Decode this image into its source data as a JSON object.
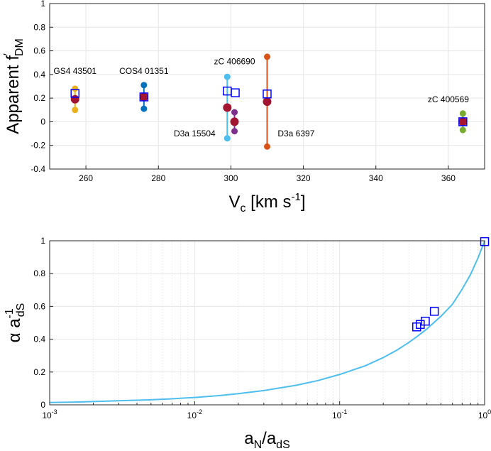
{
  "chart_data": [
    {
      "type": "scatter",
      "title": "",
      "xlabel": {
        "base": "V",
        "sub": "c",
        "rest": " [km s",
        "sup": "-1",
        "close": "]"
      },
      "ylabel": {
        "base": "Apparent f",
        "sup": "′",
        "sub": "DM"
      },
      "xlim": [
        250,
        370
      ],
      "ylim": [
        -0.4,
        1
      ],
      "xticks": [
        260,
        280,
        300,
        320,
        340,
        360
      ],
      "yticks": [
        -0.4,
        -0.2,
        0,
        0.2,
        0.4,
        0.6,
        0.8,
        1
      ],
      "xtick_labels": [
        "260",
        "280",
        "300",
        "320",
        "340",
        "360"
      ],
      "ytick_labels": [
        "-0.4",
        "-0.2",
        "0",
        "0.2",
        "0.4",
        "0.6",
        "0.8",
        "1"
      ],
      "grid": true,
      "series": [
        {
          "name": "GS4 43501",
          "x": 257,
          "low": 0.1,
          "high": 0.28,
          "mid": 0.19,
          "square": 0.24,
          "color": "#EDB120",
          "label_text": "GS4 43501",
          "label_at": [
            257,
            0.43
          ]
        },
        {
          "name": "COS4 01351",
          "x": 276,
          "low": 0.11,
          "high": 0.31,
          "mid": 0.21,
          "square": 0.21,
          "color": "#0072BD",
          "label_text": "COS4 01351",
          "label_at": [
            276,
            0.43
          ]
        },
        {
          "name": "D3a 15504",
          "x": 299,
          "low": -0.14,
          "high": 0.38,
          "mid": 0.12,
          "square": 0.26,
          "color": "#4DBEEE",
          "label_text": "D3a 15504",
          "label_at": [
            290,
            -0.1
          ]
        },
        {
          "name": "zC 406690",
          "x": 301,
          "low": -0.08,
          "high": 0.08,
          "mid": 0.0,
          "square": 0.245,
          "color": "#7E2F8E",
          "label_text": "zC 406690",
          "label_at": [
            301,
            0.51
          ]
        },
        {
          "name": "D3a 6397",
          "x": 310,
          "low": -0.21,
          "high": 0.55,
          "mid": 0.17,
          "square": 0.235,
          "color": "#D95319",
          "label_text": "D3a 6397",
          "label_at": [
            318,
            -0.1
          ]
        },
        {
          "name": "zC 400569",
          "x": 364,
          "low": -0.07,
          "high": 0.07,
          "mid": 0.0,
          "square": 0.0,
          "color": "#77AC30",
          "label_text": "zC 400569",
          "label_at": [
            360,
            0.19
          ]
        }
      ],
      "mid_color": "#A2142F",
      "square_color": "#0000FF"
    },
    {
      "type": "line",
      "title": "",
      "xlabel": {
        "base": "a",
        "sub": "N",
        "rest": "/a",
        "sub2": "dS"
      },
      "ylabel": {
        "base": "α a",
        "sup": "-1",
        "sub": "dS"
      },
      "xscale": "log",
      "xlim": [
        0.001,
        1
      ],
      "ylim": [
        0,
        1
      ],
      "xticks": [
        0.001,
        0.01,
        0.1,
        1
      ],
      "xtick_labels": [
        {
          "base": "10",
          "sup": "-3"
        },
        {
          "base": "10",
          "sup": "-2"
        },
        {
          "base": "10",
          "sup": "-1"
        },
        {
          "base": "10",
          "sup": "0"
        }
      ],
      "yticks": [
        0,
        0.2,
        0.4,
        0.6,
        0.8,
        1
      ],
      "ytick_labels": [
        "0",
        "0.2",
        "0.4",
        "0.6",
        "0.8",
        "1"
      ],
      "grid": true,
      "line_color": "#4DBEEE",
      "curve_x": [
        0.001,
        0.0015,
        0.002,
        0.003,
        0.005,
        0.007,
        0.01,
        0.015,
        0.02,
        0.03,
        0.05,
        0.07,
        0.1,
        0.15,
        0.2,
        0.25,
        0.3,
        0.35,
        0.4,
        0.5,
        0.6,
        0.7,
        0.8,
        0.9,
        1.0
      ],
      "curve_y": [
        0.014,
        0.017,
        0.02,
        0.025,
        0.031,
        0.037,
        0.045,
        0.057,
        0.068,
        0.087,
        0.119,
        0.147,
        0.185,
        0.238,
        0.288,
        0.335,
        0.38,
        0.423,
        0.463,
        0.54,
        0.613,
        0.705,
        0.795,
        0.895,
        1.0
      ],
      "markers": [
        {
          "x": 0.34,
          "y": 0.475
        },
        {
          "x": 0.36,
          "y": 0.49
        },
        {
          "x": 0.39,
          "y": 0.51
        },
        {
          "x": 0.45,
          "y": 0.57
        },
        {
          "x": 1.0,
          "y": 0.995
        }
      ],
      "marker_color": "#0000FF"
    }
  ]
}
